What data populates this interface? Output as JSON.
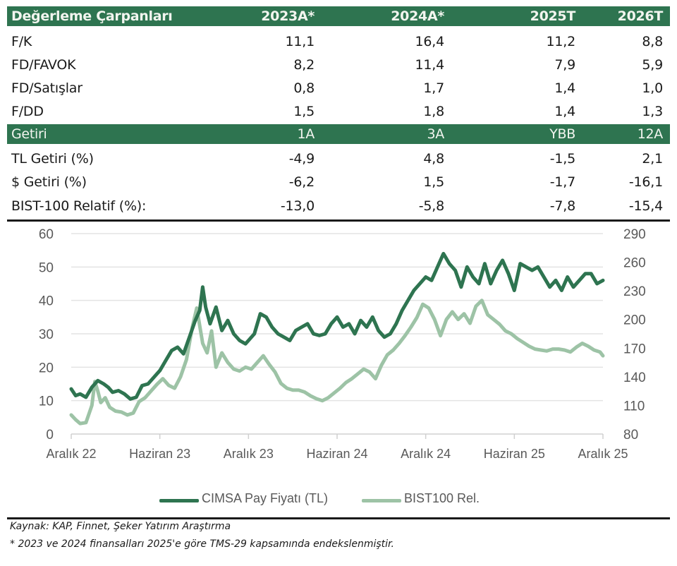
{
  "valuation_table": {
    "headers": [
      "Değerleme Çarpanları",
      "2023A*",
      "2024A*",
      "2025T",
      "2026T"
    ],
    "rows": [
      {
        "label": "F/K",
        "values": [
          "11,1",
          "16,4",
          "11,2",
          "8,8"
        ]
      },
      {
        "label": "FD/FAVOK",
        "values": [
          "8,2",
          "11,4",
          "7,9",
          "5,9"
        ]
      },
      {
        "label": "FD/Satışlar",
        "values": [
          "0,8",
          "1,7",
          "1,4",
          "1,0"
        ]
      },
      {
        "label": "F/DD",
        "values": [
          "1,5",
          "1,8",
          "1,4",
          "1,3"
        ]
      }
    ]
  },
  "returns_table": {
    "headers": [
      "Getiri",
      "1A",
      "3A",
      "YBB",
      "12A"
    ],
    "rows": [
      {
        "label": "TL Getiri (%)",
        "values": [
          "-4,9",
          "4,8",
          "-1,5",
          "2,1"
        ]
      },
      {
        "label": "$ Getiri (%)",
        "values": [
          "-6,2",
          "1,5",
          "-1,7",
          "-16,1"
        ]
      },
      {
        "label": "BIST-100 Relatif (%):",
        "values": [
          "-13,0",
          "-5,8",
          "-7,8",
          "-15,4"
        ]
      }
    ]
  },
  "colors": {
    "header_bg": "#2e7450",
    "header_text": "#f2f5ef",
    "series_primary": "#2e7450",
    "series_secondary": "#9dc3a6",
    "gridline": "#e3e3e3",
    "axis_text": "#595959"
  },
  "chart_data": {
    "type": "line",
    "title": "",
    "xlabel": "",
    "ylabel": "",
    "x_tick_labels": [
      "Aralık 22",
      "Haziran 23",
      "Aralık 23",
      "Haziran 24",
      "Aralık 24",
      "Haziran 25",
      "Aralık 25"
    ],
    "y_left": {
      "ticks": [
        0,
        10,
        20,
        30,
        40,
        50,
        60
      ],
      "range": [
        0,
        60
      ]
    },
    "y_right": {
      "ticks": [
        80,
        110,
        140,
        170,
        200,
        230,
        260,
        290
      ],
      "range": [
        80,
        290
      ]
    },
    "grid": true,
    "legend_position": "bottom",
    "x_range_months": [
      0,
      36
    ],
    "series": [
      {
        "name": "CIMSA Pay Fiyatı (TL)",
        "axis": "left",
        "x_months": [
          0,
          0.3,
          0.6,
          1.0,
          1.4,
          1.8,
          2.2,
          2.5,
          2.8,
          3.2,
          3.6,
          4.0,
          4.4,
          4.8,
          5.2,
          5.6,
          6.0,
          6.4,
          6.8,
          7.2,
          7.6,
          8.0,
          8.4,
          8.7,
          8.9,
          9.1,
          9.4,
          9.8,
          10.2,
          10.6,
          11.0,
          11.4,
          11.8,
          12.0,
          12.4,
          12.8,
          13.2,
          13.6,
          14.0,
          14.4,
          14.8,
          15.2,
          15.6,
          16.0,
          16.4,
          16.8,
          17.2,
          17.6,
          18.0,
          18.4,
          18.8,
          19.2,
          19.6,
          20.0,
          20.4,
          20.8,
          21.2,
          21.6,
          22.0,
          22.4,
          22.8,
          23.2,
          23.6,
          24.0,
          24.4,
          24.8,
          25.2,
          25.6,
          26.0,
          26.4,
          26.8,
          27.2,
          27.6,
          28.0,
          28.4,
          28.8,
          29.2,
          29.6,
          30.0,
          30.4,
          30.8,
          31.2,
          31.6,
          32.0,
          32.4,
          32.8,
          33.2,
          33.6,
          34.0,
          34.4,
          34.8,
          35.2,
          35.6,
          36.0
        ],
        "values": [
          13.5,
          11.5,
          12,
          11,
          14,
          16,
          15,
          14,
          12.5,
          13,
          12,
          10.5,
          11,
          14.5,
          15,
          17,
          19,
          22,
          25,
          26,
          24,
          29,
          34,
          37,
          44,
          38,
          33,
          38,
          31,
          34,
          30,
          28,
          27,
          28,
          30,
          36,
          35,
          32,
          30,
          29,
          28,
          31,
          32,
          33,
          30,
          29.5,
          30,
          33,
          35,
          32,
          33,
          30,
          34,
          32,
          35,
          31,
          29,
          30,
          33,
          37,
          40,
          43,
          45,
          47,
          46,
          50,
          54,
          51,
          49,
          44,
          50,
          47,
          45,
          51,
          45,
          49,
          52,
          48,
          43,
          51,
          50,
          49,
          50,
          47,
          44,
          46,
          43,
          47,
          44,
          46,
          48,
          48,
          45,
          46
        ],
        "color": "#2e7450"
      },
      {
        "name": "BIST100 Rel.",
        "axis": "right",
        "x_months": [
          0,
          0.3,
          0.6,
          1.0,
          1.4,
          1.6,
          1.8,
          2.0,
          2.3,
          2.6,
          3.0,
          3.4,
          3.8,
          4.2,
          4.6,
          5.0,
          5.4,
          5.8,
          6.2,
          6.6,
          7.0,
          7.4,
          7.8,
          8.2,
          8.5,
          8.9,
          9.2,
          9.5,
          9.8,
          10.2,
          10.6,
          11.0,
          11.4,
          11.8,
          12.2,
          12.6,
          13.0,
          13.4,
          13.8,
          14.2,
          14.6,
          15.0,
          15.4,
          15.8,
          16.2,
          16.6,
          17.0,
          17.4,
          17.8,
          18.2,
          18.6,
          19.0,
          19.4,
          19.8,
          20.2,
          20.6,
          21.0,
          21.4,
          21.8,
          22.2,
          22.6,
          23.0,
          23.4,
          23.8,
          24.2,
          24.6,
          25.0,
          25.4,
          25.8,
          26.2,
          26.6,
          27.0,
          27.4,
          27.8,
          28.2,
          28.6,
          29.0,
          29.4,
          29.8,
          30.2,
          30.6,
          31.0,
          31.4,
          31.8,
          32.2,
          32.6,
          33.0,
          33.4,
          33.8,
          34.2,
          34.6,
          35.0,
          35.4,
          35.8,
          36.0
        ],
        "values": [
          100,
          95,
          91,
          92,
          110,
          135,
          125,
          113,
          118,
          108,
          104,
          103,
          100,
          102,
          114,
          118,
          125,
          132,
          138,
          131,
          128,
          140,
          158,
          192,
          212,
          175,
          165,
          188,
          150,
          165,
          155,
          148,
          146,
          150,
          148,
          155,
          162,
          153,
          145,
          133,
          128,
          126,
          126,
          124,
          120,
          117,
          115,
          118,
          123,
          128,
          134,
          138,
          143,
          148,
          145,
          138,
          152,
          163,
          168,
          175,
          183,
          192,
          202,
          216,
          212,
          200,
          183,
          200,
          208,
          200,
          206,
          196,
          214,
          220,
          205,
          200,
          195,
          188,
          185,
          180,
          176,
          172,
          169,
          168,
          167,
          169,
          169,
          168,
          166,
          171,
          175,
          172,
          168,
          166,
          162
        ],
        "color": "#9dc3a6"
      }
    ]
  },
  "legend": {
    "items": [
      {
        "label": "CIMSA Pay Fiyatı (TL)"
      },
      {
        "label": "BIST100 Rel."
      }
    ]
  },
  "footer": {
    "source": "Kaynak: KAP, Finnet, Şeker Yatırım Araştırma",
    "note": "* 2023 ve 2024 finansalları 2025'e göre TMS-29 kapsamında endekslenmiştir."
  }
}
